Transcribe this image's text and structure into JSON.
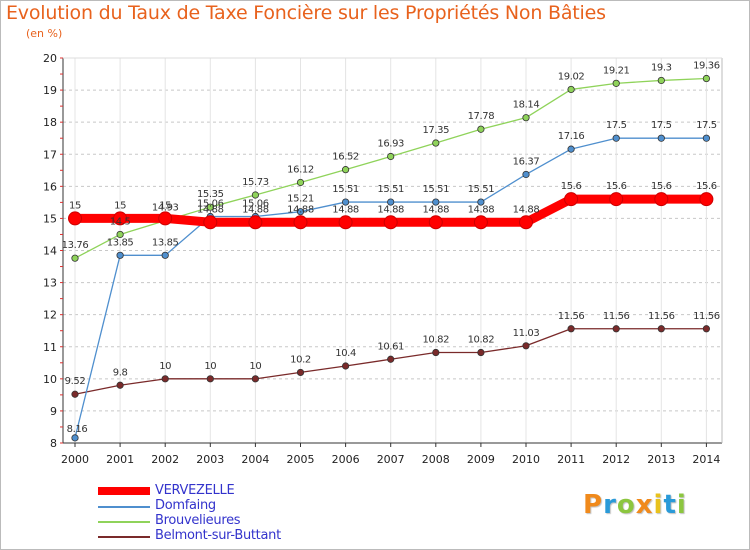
{
  "title": "Evolution du Taux de Taxe Foncière sur les Propriétés Non Bâties",
  "subtitle": "(en %)",
  "logo": {
    "letters": [
      "P",
      "r",
      "o",
      "x",
      "i",
      "t",
      "i"
    ],
    "colors": [
      "#f08a1c",
      "#2a9ad8",
      "#8cc63f",
      "#f08a1c",
      "#e8c21d",
      "#2a9ad8",
      "#8cc63f"
    ]
  },
  "chart_data": {
    "type": "line",
    "x": [
      2000,
      2001,
      2002,
      2003,
      2004,
      2005,
      2006,
      2007,
      2008,
      2009,
      2010,
      2011,
      2012,
      2013,
      2014
    ],
    "ylim": [
      8,
      20
    ],
    "yticks": [
      8,
      9,
      10,
      11,
      12,
      13,
      14,
      15,
      16,
      17,
      18,
      19,
      20
    ],
    "grid": "horizontal-dashed",
    "legend_position": "bottom-left",
    "series": [
      {
        "name": "VERVEZELLE",
        "color": "#ff0000",
        "values": [
          15,
          15,
          15,
          14.88,
          14.88,
          14.88,
          14.88,
          14.88,
          14.88,
          14.88,
          14.88,
          15.6,
          15.6,
          15.6,
          15.6
        ],
        "labels": [
          "15",
          "15",
          "15",
          "14.88",
          "14.88",
          "14.88",
          "14.88",
          "14.88",
          "14.88",
          "14.88",
          "14.88",
          "15.6",
          "15.6",
          "15.6",
          "15.6"
        ]
      },
      {
        "name": "Domfaing",
        "color": "#4f8fce",
        "values": [
          8.16,
          13.85,
          13.85,
          15.06,
          15.06,
          15.21,
          15.51,
          15.51,
          15.51,
          15.51,
          16.37,
          17.16,
          17.5,
          17.5,
          17.5
        ],
        "labels": [
          "8.16",
          "13.85",
          "13.85",
          "15.06",
          "15.06",
          "15.21",
          "15.51",
          "15.51",
          "15.51",
          "15.51",
          "16.37",
          "17.16",
          "17.5",
          "17.5",
          "17.5"
        ]
      },
      {
        "name": "Brouvelieures",
        "color": "#8fd35a",
        "values": [
          13.76,
          14.5,
          14.93,
          15.35,
          15.73,
          16.12,
          16.52,
          16.93,
          17.35,
          17.78,
          18.14,
          19.02,
          19.21,
          19.3,
          19.36
        ],
        "labels": [
          "13.76",
          "14.5",
          "14.93",
          "15.35",
          "15.73",
          "16.12",
          "16.52",
          "16.93",
          "17.35",
          "17.78",
          "18.14",
          "19.02",
          "19.21",
          "19.3",
          "19.36"
        ]
      },
      {
        "name": "Belmont-sur-Buttant",
        "color": "#7a2a2a",
        "values": [
          9.52,
          9.8,
          10,
          10,
          10,
          10.2,
          10.4,
          10.61,
          10.82,
          10.82,
          11.03,
          11.56,
          11.56,
          11.56,
          11.56
        ],
        "labels": [
          "9.52",
          "9.8",
          "10",
          "10",
          "10",
          "10.2",
          "10.4",
          "10.61",
          "10.82",
          "10.82",
          "11.03",
          "11.56",
          "11.56",
          "11.56",
          "11.56"
        ]
      }
    ]
  }
}
